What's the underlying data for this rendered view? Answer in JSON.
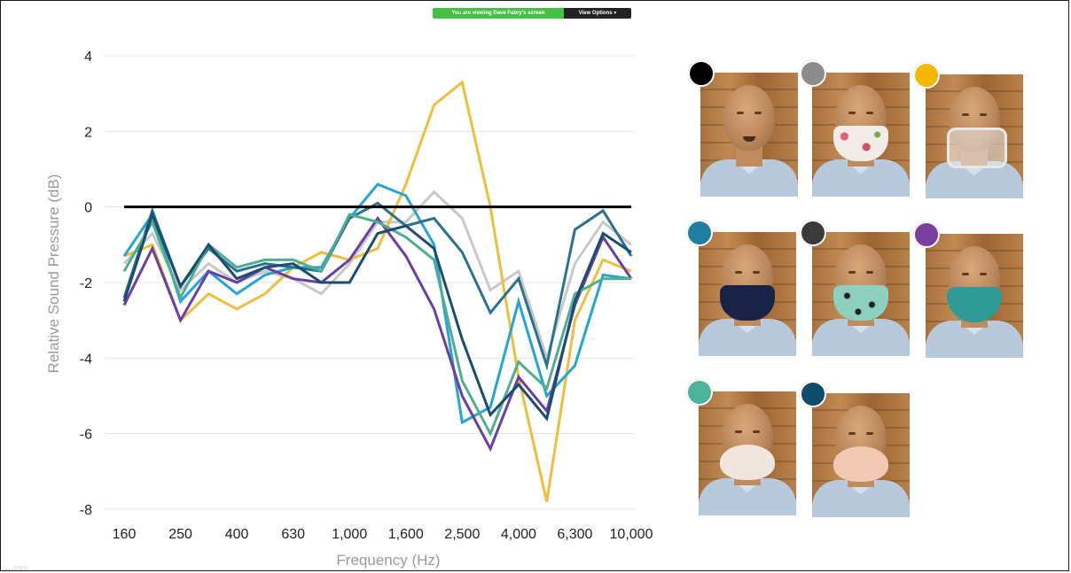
{
  "screen_share": {
    "viewing_text": "You are viewing Dave Fabry's screen",
    "options_label": "View Options"
  },
  "chart_data": {
    "type": "line",
    "title": "",
    "xlabel": "Frequency (Hz)",
    "ylabel": "Relative Sound Pressure (dB)",
    "ylim": [
      -8,
      4
    ],
    "yticks": [
      4,
      2,
      0,
      -2,
      -4,
      -6,
      -8
    ],
    "grid": "horizontal",
    "x": [
      "160",
      "200",
      "250",
      "315",
      "400",
      "500",
      "630",
      "800",
      "1,000",
      "1,250",
      "1,600",
      "2,000",
      "2,500",
      "3,150",
      "4,000",
      "5,000",
      "6,300",
      "8,000",
      "10,000"
    ],
    "xtick_labels": [
      "160",
      "250",
      "400",
      "630",
      "1,000",
      "1,600",
      "2,500",
      "4,000",
      "6,300",
      "10,000"
    ],
    "reference_line": {
      "y": 0,
      "color": "#000000"
    },
    "series": [
      {
        "color": "#8c8c8c",
        "values": [
          -1.5,
          -0.7,
          -2.2,
          -1.5,
          -2.0,
          -1.7,
          -1.9,
          -2.3,
          -1.5,
          -0.4,
          -0.4,
          0.4,
          -0.3,
          -2.2,
          -1.7,
          -4.0,
          -1.5,
          -0.4,
          -1.0
        ],
        "display": "#c8c8c8"
      },
      {
        "color": "#f5b800",
        "values": [
          -1.3,
          -1.0,
          -3.0,
          -2.3,
          -2.7,
          -2.3,
          -1.6,
          -1.2,
          -1.4,
          -1.1,
          0.6,
          2.7,
          3.3,
          0.0,
          -4.5,
          -7.8,
          -3.0,
          -1.4,
          -1.7
        ],
        "display": "#f0bd3c"
      },
      {
        "color": "#1f7ea1",
        "values": [
          -1.3,
          -0.2,
          -2.5,
          -1.7,
          -2.3,
          -1.8,
          -1.6,
          -1.6,
          -0.3,
          0.6,
          0.3,
          -1.0,
          -5.7,
          -5.3,
          -2.5,
          -5.0,
          -4.2,
          -1.8,
          -1.9
        ],
        "display": "#26a5d4"
      },
      {
        "color": "#3a3a3a",
        "values": [
          -2.4,
          -0.1,
          -2.1,
          -1.1,
          -1.7,
          -1.5,
          -1.6,
          -1.7,
          -0.3,
          0.1,
          -0.5,
          -0.3,
          -1.2,
          -2.8,
          -1.9,
          -4.2,
          -0.6,
          -0.1,
          -1.3
        ],
        "display": "#2a7291"
      },
      {
        "color": "#7b3fa0",
        "values": [
          -2.6,
          -1.1,
          -3.0,
          -1.7,
          -2.0,
          -1.6,
          -1.9,
          -2.0,
          -1.4,
          -0.3,
          -1.3,
          -2.7,
          -5.0,
          -6.4,
          -4.5,
          -5.4,
          -2.6,
          -0.8,
          -1.9
        ],
        "display": "#6a3fa5"
      },
      {
        "color": "#4db39a",
        "values": [
          -1.7,
          -0.4,
          -2.4,
          -1.0,
          -1.6,
          -1.4,
          -1.4,
          -1.7,
          -0.2,
          -0.4,
          -0.8,
          -1.4,
          -4.6,
          -6.0,
          -4.1,
          -4.8,
          -2.3,
          -1.9,
          -1.9
        ],
        "display": "#4fae92"
      },
      {
        "color": "#0f4c6b",
        "values": [
          -2.5,
          -0.2,
          -2.1,
          -1.0,
          -1.9,
          -1.6,
          -1.5,
          -2.0,
          -2.0,
          -0.7,
          -0.5,
          -1.1,
          -3.5,
          -5.5,
          -4.7,
          -5.6,
          -2.5,
          -0.7,
          -1.2
        ],
        "display": "#1b4e6e"
      }
    ]
  },
  "faces": [
    {
      "swatch": "#000000",
      "mask": "none"
    },
    {
      "swatch": "#8c8c8c",
      "mask": "floral-cloth"
    },
    {
      "swatch": "#f5b800",
      "mask": "clear-window"
    },
    {
      "swatch": "#1f7ea1",
      "mask": "navy-cloth"
    },
    {
      "swatch": "#3a3a3a",
      "mask": "mint-print"
    },
    {
      "swatch": "#7b3fa0",
      "mask": "teal-surgical"
    },
    {
      "swatch": "#4db39a",
      "mask": "n95-white"
    },
    {
      "swatch": "#0f4c6b",
      "mask": "n95-peach"
    }
  ]
}
